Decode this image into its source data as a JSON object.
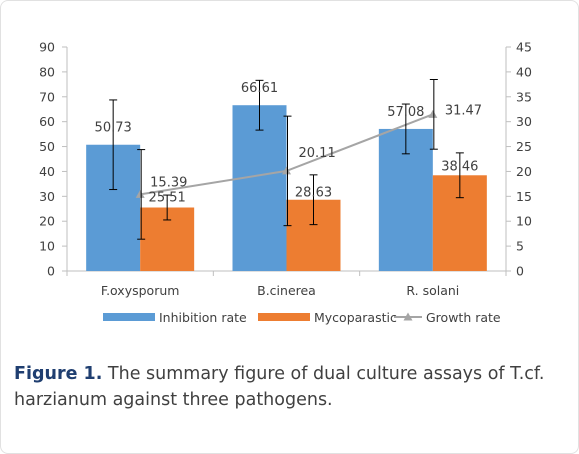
{
  "chart_data": {
    "type": "bar",
    "categories": [
      "F.oxysporum",
      "B.cinerea",
      "R. solani"
    ],
    "series": [
      {
        "name": "Inhibition rate",
        "kind": "bar",
        "axis": "left",
        "color": "#5b9bd5",
        "values": [
          50.73,
          66.61,
          57.08
        ],
        "labels": [
          "50.73",
          "66.61",
          "57.08"
        ],
        "errors": [
          18,
          10,
          10
        ]
      },
      {
        "name": "Mycoparastic",
        "kind": "bar",
        "axis": "left",
        "color": "#ed7d31",
        "values": [
          25.51,
          28.63,
          38.46
        ],
        "labels": [
          "25.51",
          "28.63",
          "38.46"
        ],
        "errors": [
          5,
          10,
          9
        ]
      },
      {
        "name": "Growth rate",
        "kind": "line",
        "axis": "right",
        "color": "#a5a5a5",
        "values": [
          15.39,
          20.11,
          31.47
        ],
        "labels": [
          "15.39",
          "20.11",
          "31.47"
        ],
        "errors": [
          9,
          11,
          7
        ]
      }
    ],
    "ylim": [
      0,
      90
    ],
    "yticks": [
      "0",
      "10",
      "20",
      "30",
      "40",
      "50",
      "60",
      "70",
      "80",
      "90"
    ],
    "y2lim": [
      0,
      45
    ],
    "y2ticks": [
      "0",
      "5",
      "10",
      "15",
      "20",
      "25",
      "30",
      "35",
      "40",
      "45"
    ],
    "legend_position": "bottom",
    "grid": false
  },
  "caption": {
    "label": "Figure 1.",
    "text": " The summary figure of dual culture assays of T.cf. harzianum against three pathogens."
  }
}
